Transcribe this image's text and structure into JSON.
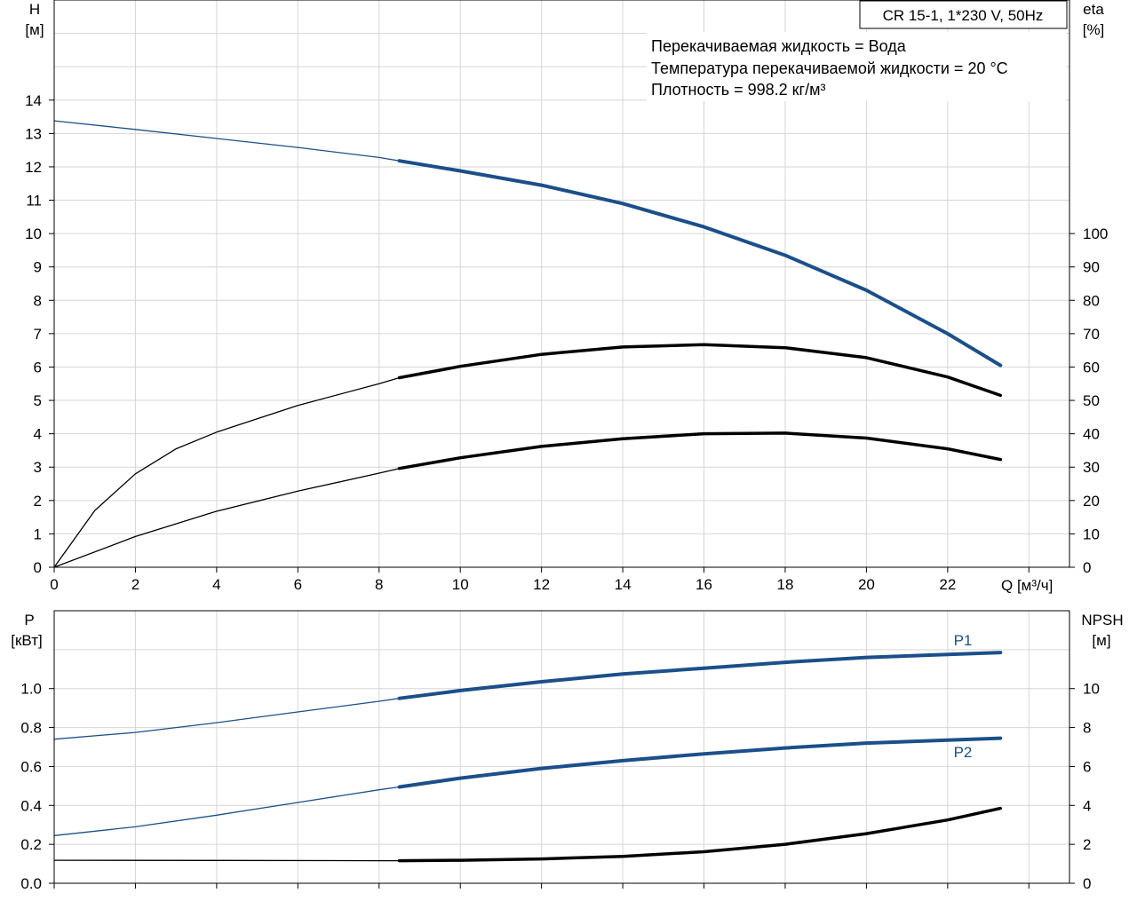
{
  "chart_data": [
    {
      "type": "line",
      "model": "CR 15-1, 1*230 V, 50Hz",
      "info_lines": [
        "Перекачиваемая жидкость = Вода",
        "Температура перекачиваемой жидкости = 20 °C",
        "Плотность = 998.2 кг/м³"
      ],
      "xlabel": "Q [м³/ч]",
      "ylabel_left": [
        "H",
        "[м]"
      ],
      "ylabel_right": [
        "eta",
        "[%]"
      ],
      "x_ticks": [
        0,
        2,
        4,
        6,
        8,
        10,
        12,
        14,
        16,
        18,
        20,
        22
      ],
      "y_left_ticks": [
        0,
        1,
        2,
        3,
        4,
        5,
        6,
        7,
        8,
        9,
        10,
        11,
        12,
        13,
        14
      ],
      "y_right_ticks": [
        0,
        10,
        20,
        30,
        40,
        50,
        60,
        70,
        80,
        90,
        100
      ],
      "xlim": [
        0,
        25
      ],
      "ylim_left": [
        0,
        17
      ],
      "ylim_right": [
        0,
        170
      ],
      "duty_start_q": 8.5,
      "series": [
        {
          "axis": "left",
          "color": "#1b4f8a",
          "x": [
            0,
            2,
            4,
            6,
            8,
            8.5,
            10,
            12,
            14,
            16,
            18,
            20,
            22,
            23.3
          ],
          "values": [
            13.38,
            13.12,
            12.85,
            12.58,
            12.28,
            12.18,
            11.88,
            11.45,
            10.9,
            10.2,
            9.35,
            8.3,
            7.0,
            6.05
          ]
        },
        {
          "axis": "right",
          "color": "#000000",
          "x": [
            0,
            1,
            2,
            3,
            4,
            6,
            8,
            8.5,
            10,
            12,
            14,
            16,
            18,
            20,
            22,
            23.3
          ],
          "values": [
            0,
            17,
            28,
            35.5,
            40.5,
            48.5,
            55,
            56.8,
            60.2,
            63.8,
            66,
            66.7,
            65.8,
            62.8,
            57,
            51.5
          ]
        },
        {
          "axis": "right",
          "color": "#000000",
          "x": [
            0,
            2,
            4,
            6,
            8,
            8.5,
            10,
            12,
            14,
            16,
            18,
            20,
            22,
            23.3
          ],
          "values": [
            0,
            9.2,
            16.8,
            22.8,
            28.2,
            29.6,
            32.8,
            36.2,
            38.5,
            40,
            40.2,
            38.7,
            35.5,
            32.3
          ]
        }
      ]
    },
    {
      "type": "line",
      "xlabel": "",
      "ylabel_left": [
        "P",
        "[кВт]"
      ],
      "ylabel_right": [
        "NPSH",
        "[м]"
      ],
      "y_left_ticks": [
        0.0,
        0.2,
        0.4,
        0.6,
        0.8,
        1.0
      ],
      "y_left_tick_labels": [
        "0.0",
        "0.2",
        "0.4",
        "0.6",
        "0.8",
        "1.0"
      ],
      "y_right_ticks": [
        0,
        2,
        4,
        6,
        8,
        10
      ],
      "xlim": [
        0,
        25
      ],
      "ylim_left": [
        0,
        1.4
      ],
      "ylim_right": [
        0,
        14
      ],
      "duty_start_q": 8.5,
      "series": [
        {
          "name": "P1",
          "axis": "left",
          "color": "#1b4f8a",
          "x": [
            0,
            2,
            4,
            6,
            8,
            8.5,
            10,
            12,
            14,
            16,
            18,
            20,
            22,
            23.3
          ],
          "values": [
            0.74,
            0.775,
            0.825,
            0.88,
            0.935,
            0.95,
            0.99,
            1.035,
            1.075,
            1.105,
            1.135,
            1.16,
            1.175,
            1.185
          ]
        },
        {
          "name": "P2",
          "axis": "left",
          "color": "#1b4f8a",
          "x": [
            0,
            2,
            4,
            6,
            8,
            8.5,
            10,
            12,
            14,
            16,
            18,
            20,
            22,
            23.3
          ],
          "values": [
            0.245,
            0.29,
            0.35,
            0.415,
            0.48,
            0.495,
            0.54,
            0.59,
            0.63,
            0.665,
            0.695,
            0.72,
            0.735,
            0.745
          ]
        },
        {
          "axis": "right",
          "color": "#000000",
          "x": [
            0,
            4,
            8,
            8.5,
            10,
            12,
            14,
            16,
            18,
            20,
            22,
            23.3
          ],
          "values": [
            1.18,
            1.17,
            1.16,
            1.16,
            1.18,
            1.25,
            1.38,
            1.62,
            2.0,
            2.55,
            3.25,
            3.85
          ]
        }
      ]
    }
  ]
}
